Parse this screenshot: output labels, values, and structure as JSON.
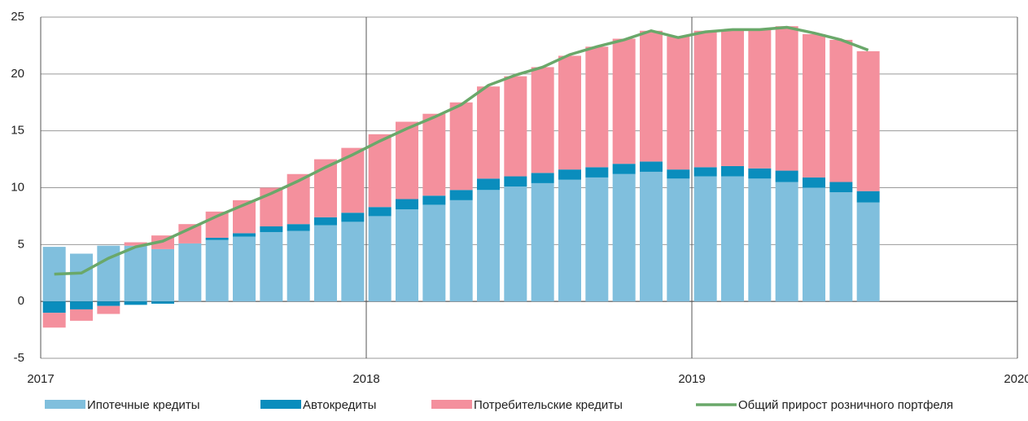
{
  "chart_data": {
    "type": "bar",
    "categories": [
      null,
      null,
      null,
      null,
      null,
      null,
      null,
      null,
      null,
      null,
      null,
      null,
      null,
      null,
      null,
      null,
      null,
      null,
      null,
      null,
      null,
      null,
      null,
      null,
      null,
      null,
      null,
      null,
      null,
      null,
      null
    ],
    "series": [
      {
        "name": "Ипотечные кредиты",
        "color": "#80bfdd",
        "values": [
          4.8,
          4.2,
          4.9,
          4.9,
          4.6,
          5.1,
          5.4,
          5.7,
          6.1,
          6.2,
          6.7,
          7.0,
          7.5,
          8.1,
          8.5,
          8.9,
          9.8,
          10.1,
          10.4,
          10.7,
          10.9,
          11.2,
          11.4,
          10.8,
          11.0,
          11.0,
          10.8,
          10.5,
          10.0,
          9.6,
          8.7
        ]
      },
      {
        "name": "Автокредиты",
        "color": "#0a8dbd",
        "values": [
          -1.0,
          -0.7,
          -0.4,
          -0.3,
          -0.2,
          0,
          0.2,
          0.3,
          0.5,
          0.6,
          0.7,
          0.8,
          0.8,
          0.9,
          0.8,
          0.9,
          1.0,
          0.9,
          0.9,
          0.9,
          0.9,
          0.9,
          0.9,
          0.8,
          0.8,
          0.9,
          0.9,
          1.0,
          0.9,
          0.9,
          1.0
        ]
      },
      {
        "name": "Потребительские кредиты",
        "color": "#f4909d",
        "values": [
          -1.3,
          -1.0,
          -0.7,
          0.3,
          1.2,
          1.7,
          2.3,
          2.9,
          3.4,
          4.4,
          5.1,
          5.7,
          6.4,
          6.8,
          7.2,
          7.7,
          8.1,
          8.8,
          9.3,
          10.0,
          10.6,
          11.0,
          11.5,
          11.7,
          12.0,
          12.0,
          12.3,
          12.7,
          12.6,
          12.5,
          12.3
        ]
      },
      {
        "name": "Общий прирост розничного портфеля",
        "type": "line",
        "color": "#6aa86a",
        "values": [
          2.4,
          2.5,
          3.8,
          4.8,
          5.3,
          6.4,
          7.5,
          8.5,
          9.5,
          10.6,
          11.8,
          12.9,
          14.1,
          15.2,
          16.2,
          17.3,
          19.0,
          19.9,
          20.6,
          21.7,
          22.4,
          23.0,
          23.8,
          23.2,
          23.7,
          23.9,
          23.9,
          24.1,
          23.6,
          23.0,
          22.1
        ]
      }
    ],
    "xlim": [
      2017,
      2020
    ],
    "xticks": [
      2017,
      2018,
      2019,
      2020
    ],
    "ylim": [
      -5,
      25
    ],
    "yticks": [
      -5,
      0,
      5,
      10,
      15,
      20,
      25
    ],
    "grid": true
  }
}
